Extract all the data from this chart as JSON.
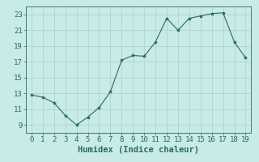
{
  "x": [
    0,
    1,
    2,
    3,
    4,
    5,
    6,
    7,
    8,
    9,
    10,
    11,
    12,
    13,
    14,
    15,
    16,
    17,
    18,
    19
  ],
  "y": [
    12.8,
    12.5,
    11.8,
    10.2,
    9.0,
    10.0,
    11.2,
    13.2,
    17.2,
    17.8,
    17.7,
    19.5,
    22.5,
    21.0,
    22.5,
    22.8,
    23.1,
    23.2,
    19.5,
    17.5
  ],
  "line_color": "#2a6b5e",
  "marker": "*",
  "marker_size": 3,
  "bg_color": "#c8eae8",
  "grid_color": "#b0d4d0",
  "tick_color": "#2a6b5e",
  "xlabel": "Humidex (Indice chaleur)",
  "xlim": [
    -0.5,
    19.5
  ],
  "ylim": [
    8.0,
    24.0
  ],
  "yticks": [
    9,
    11,
    13,
    15,
    17,
    19,
    21,
    23
  ],
  "xticks": [
    0,
    1,
    2,
    3,
    4,
    5,
    6,
    7,
    8,
    9,
    10,
    11,
    12,
    13,
    14,
    15,
    16,
    17,
    18,
    19
  ],
  "xlabel_fontsize": 7.5,
  "tick_fontsize": 6.5
}
